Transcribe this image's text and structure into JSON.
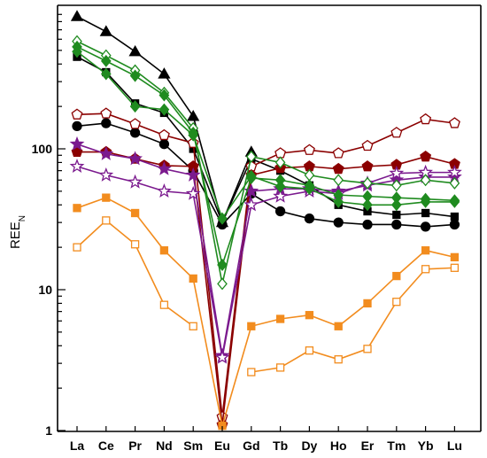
{
  "chart_data": {
    "type": "line",
    "title": "",
    "xlabel": "",
    "ylabel": "REE",
    "ylabel_subscript": "N",
    "y_scale": "log",
    "ylim": [
      1,
      1000
    ],
    "y_ticks": [
      1,
      10,
      100
    ],
    "grid": false,
    "legend": "none",
    "categories": [
      "La",
      "Ce",
      "Pr",
      "Nd",
      "Sm",
      "Eu",
      "Gd",
      "Tb",
      "Dy",
      "Ho",
      "Er",
      "Tm",
      "Yb",
      "Lu"
    ],
    "series": [
      {
        "color": "#000000",
        "marker": "triangle",
        "fill": true,
        "values": [
          870,
          680,
          490,
          340,
          170,
          30,
          95,
          null,
          null,
          null,
          null,
          null,
          null,
          null
        ]
      },
      {
        "color": "#000000",
        "marker": "square",
        "fill": true,
        "values": [
          450,
          350,
          210,
          180,
          100,
          30,
          85,
          70,
          55,
          40,
          36,
          34,
          35,
          33
        ]
      },
      {
        "color": "#000000",
        "marker": "circle",
        "fill": true,
        "values": [
          145,
          152,
          130,
          108,
          70,
          29,
          48,
          36,
          32,
          30,
          29,
          29,
          28,
          29
        ]
      },
      {
        "color": "#8B0000",
        "marker": "pentagon",
        "fill": false,
        "values": [
          175,
          178,
          150,
          125,
          110,
          1.25,
          75,
          93,
          98,
          93,
          105,
          130,
          162,
          152
        ]
      },
      {
        "color": "#8B0000",
        "marker": "pentagon",
        "fill": true,
        "values": [
          95,
          95,
          85,
          76,
          75,
          1.1,
          65,
          73,
          75,
          72,
          75,
          77,
          88,
          78
        ]
      },
      {
        "color": "#7B1A8E",
        "marker": "star",
        "fill": true,
        "values": [
          108,
          92,
          85,
          72,
          65,
          3.4,
          50,
          52,
          52,
          50,
          55,
          60,
          63,
          63
        ]
      },
      {
        "color": "#7B1A8E",
        "marker": "star",
        "fill": false,
        "values": [
          75,
          65,
          58,
          50,
          48,
          3.3,
          40,
          46,
          50,
          48,
          57,
          67,
          68,
          68
        ]
      },
      {
        "color": "#1F8B1F",
        "marker": "diamond",
        "fill": false,
        "values": [
          580,
          460,
          360,
          250,
          140,
          11,
          88,
          80,
          65,
          60,
          57,
          55,
          60,
          57
        ]
      },
      {
        "color": "#1F8B1F",
        "marker": "diamond",
        "fill": true,
        "values": [
          530,
          420,
          330,
          240,
          130,
          15,
          62,
          60,
          55,
          47,
          46,
          45,
          44,
          43
        ]
      },
      {
        "color": "#1F8B1F",
        "marker": "diamond",
        "fill": true,
        "values": [
          490,
          340,
          200,
          190,
          125,
          32,
          64,
          54,
          52,
          42,
          40,
          40,
          42,
          42
        ]
      },
      {
        "color": "#F28C1E",
        "marker": "square",
        "fill": true,
        "values": [
          38,
          45,
          35,
          19,
          12,
          1.08,
          5.5,
          6.2,
          6.6,
          5.5,
          8,
          12.5,
          19,
          17
        ]
      },
      {
        "color": "#F28C1E",
        "marker": "square",
        "fill": false,
        "values": [
          20,
          31,
          21,
          7.8,
          5.5,
          null,
          2.6,
          2.8,
          3.7,
          3.2,
          3.8,
          8.2,
          14,
          14.3
        ]
      }
    ]
  }
}
